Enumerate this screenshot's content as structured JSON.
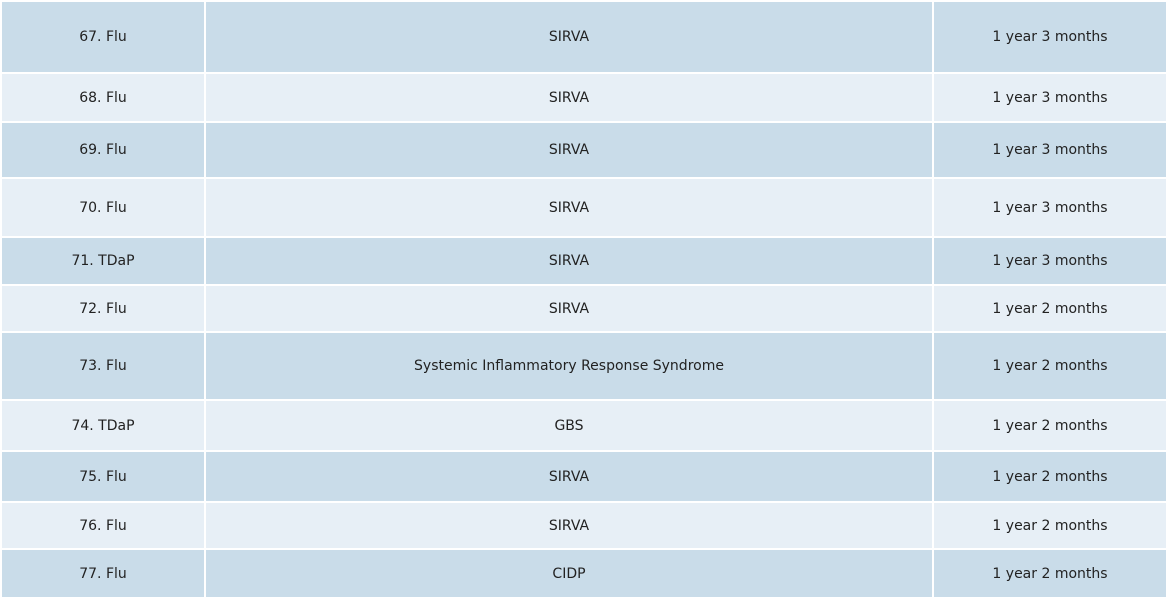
{
  "rows": [
    {
      "vaccine": "67. Flu",
      "injury": "SIRVA",
      "time": "1 year 3 months"
    },
    {
      "vaccine": "68. Flu",
      "injury": "SIRVA",
      "time": "1 year 3 months"
    },
    {
      "vaccine": "69. Flu",
      "injury": "SIRVA",
      "time": "1 year 3 months"
    },
    {
      "vaccine": "70. Flu",
      "injury": "SIRVA",
      "time": "1 year 3 months"
    },
    {
      "vaccine": "71. TDaP",
      "injury": "SIRVA",
      "time": "1 year 3 months"
    },
    {
      "vaccine": "72. Flu",
      "injury": "SIRVA",
      "time": "1 year 2 months"
    },
    {
      "vaccine": "73. Flu",
      "injury": "Systemic Inflammatory Response Syndrome",
      "time": "1 year 2 months"
    },
    {
      "vaccine": "74. TDaP",
      "injury": "GBS",
      "time": "1 year 2 months"
    },
    {
      "vaccine": "75. Flu",
      "injury": "SIRVA",
      "time": "1 year 2 months"
    },
    {
      "vaccine": "76. Flu",
      "injury": "SIRVA",
      "time": "1 year 2 months"
    },
    {
      "vaccine": "77. Flu",
      "injury": "CIDP",
      "time": "1 year 2 months"
    }
  ],
  "colors": {
    "row_dark": "#c9dce9",
    "row_light": "#e7eff6",
    "border": "#ffffff",
    "text": "#222222"
  }
}
